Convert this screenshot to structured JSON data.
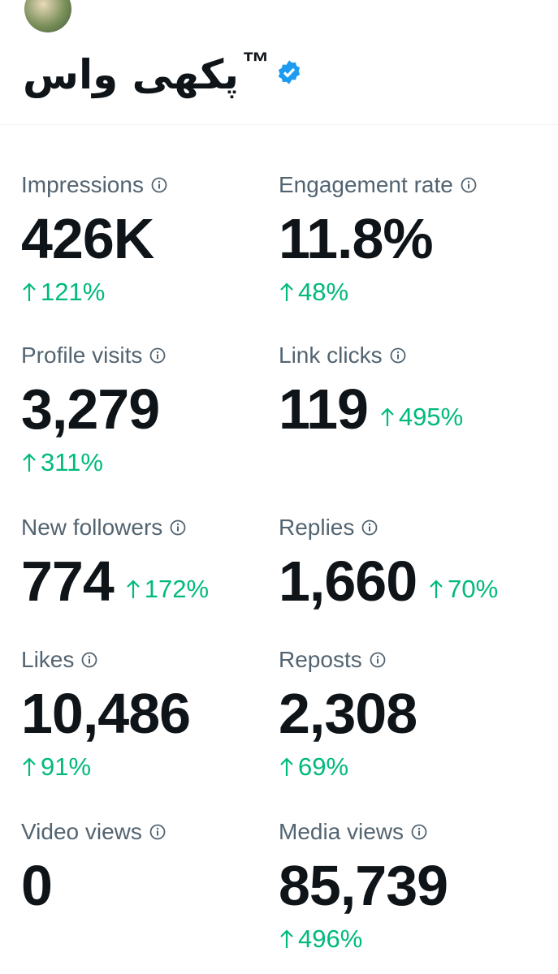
{
  "header": {
    "name": "پکھی واس",
    "tm": "™"
  },
  "metrics": [
    {
      "label": "Impressions",
      "value": "426K",
      "change": "121%"
    },
    {
      "label": "Engagement rate",
      "value": "11.8%",
      "change": "48%"
    },
    {
      "label": "Profile visits",
      "value": "3,279",
      "change": "311%"
    },
    {
      "label": "Link clicks",
      "value": "119",
      "change": "495%"
    },
    {
      "label": "New followers",
      "value": "774",
      "change": "172%"
    },
    {
      "label": "Replies",
      "value": "1,660",
      "change": "70%"
    },
    {
      "label": "Likes",
      "value": "10,486",
      "change": "91%"
    },
    {
      "label": "Reposts",
      "value": "2,308",
      "change": "69%"
    },
    {
      "label": "Video views",
      "value": "0"
    },
    {
      "label": "Media views",
      "value": "85,739",
      "change": "496%"
    }
  ]
}
